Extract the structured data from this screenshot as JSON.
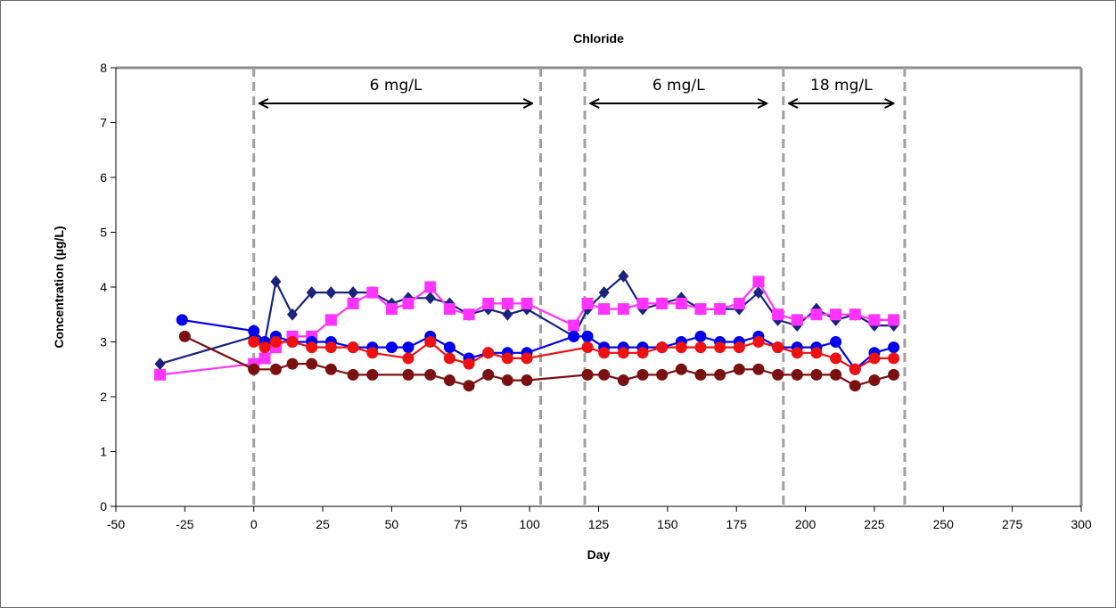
{
  "chart_data": {
    "type": "line",
    "title": "Chloride",
    "xlabel": "Day",
    "ylabel": "Concentration (µg/L)",
    "xlim": [
      -50,
      300
    ],
    "ylim": [
      0,
      8
    ],
    "x_ticks": [
      "-50",
      "-25",
      "0",
      "25",
      "50",
      "75",
      "100",
      "125",
      "150",
      "175",
      "200",
      "225",
      "250",
      "275",
      "300"
    ],
    "y_ticks": [
      "0",
      "1",
      "2",
      "3",
      "4",
      "5",
      "6",
      "7",
      "8"
    ],
    "grid": false,
    "legend": "none",
    "phase_boundaries": [
      0,
      104,
      120,
      192,
      236
    ],
    "annotations": [
      {
        "label": "6 mg/L",
        "from": 2,
        "to": 101
      },
      {
        "label": "6 mg/L",
        "from": 122,
        "to": 186
      },
      {
        "label": "18 mg/L",
        "from": 194,
        "to": 232
      }
    ],
    "series": [
      {
        "marker": "diamond",
        "color": "#1a237e",
        "x": [
          -34,
          0,
          4,
          8,
          14,
          21,
          28,
          36,
          43,
          50,
          56,
          64,
          71,
          78,
          85,
          92,
          99,
          116,
          121,
          127,
          134,
          141,
          148,
          155,
          162,
          169,
          176,
          183,
          190,
          197,
          204,
          211,
          218,
          225,
          232
        ],
        "y": [
          2.6,
          3.1,
          3.0,
          4.1,
          3.5,
          3.9,
          3.9,
          3.9,
          3.9,
          3.7,
          3.8,
          3.8,
          3.7,
          3.5,
          3.6,
          3.5,
          3.6,
          3.1,
          3.6,
          3.9,
          4.2,
          3.6,
          3.7,
          3.8,
          3.6,
          3.6,
          3.6,
          3.9,
          3.4,
          3.3,
          3.6,
          3.4,
          3.5,
          3.3,
          3.3
        ]
      },
      {
        "marker": "square",
        "color": "#ff33ff",
        "x": [
          -34,
          0,
          4,
          8,
          14,
          21,
          28,
          36,
          43,
          50,
          56,
          64,
          71,
          78,
          85,
          92,
          99,
          116,
          121,
          127,
          134,
          141,
          148,
          155,
          162,
          169,
          176,
          183,
          190,
          197,
          204,
          211,
          218,
          225,
          232
        ],
        "y": [
          2.4,
          2.6,
          2.7,
          2.9,
          3.1,
          3.1,
          3.4,
          3.7,
          3.9,
          3.6,
          3.7,
          4.0,
          3.6,
          3.5,
          3.7,
          3.7,
          3.7,
          3.3,
          3.7,
          3.6,
          3.6,
          3.7,
          3.7,
          3.7,
          3.6,
          3.6,
          3.7,
          4.1,
          3.5,
          3.4,
          3.5,
          3.5,
          3.5,
          3.4,
          3.4
        ]
      },
      {
        "marker": "circle",
        "color": "#0000ee",
        "x": [
          -26,
          0,
          4,
          8,
          14,
          21,
          28,
          36,
          43,
          50,
          56,
          64,
          71,
          78,
          85,
          92,
          99,
          116,
          121,
          127,
          134,
          141,
          148,
          155,
          162,
          169,
          176,
          183,
          190,
          197,
          204,
          211,
          218,
          225,
          232
        ],
        "y": [
          3.4,
          3.2,
          3.0,
          3.1,
          3.0,
          3.0,
          3.0,
          2.9,
          2.9,
          2.9,
          2.9,
          3.1,
          2.9,
          2.7,
          2.8,
          2.8,
          2.8,
          3.1,
          3.1,
          2.9,
          2.9,
          2.9,
          2.9,
          3.0,
          3.1,
          3.0,
          3.0,
          3.1,
          2.9,
          2.9,
          2.9,
          3.0,
          2.5,
          2.8,
          2.9
        ]
      },
      {
        "marker": "circle",
        "color": "#ee1111",
        "x": [
          0,
          4,
          8,
          14,
          21,
          28,
          36,
          43,
          56,
          64,
          71,
          78,
          85,
          92,
          99,
          121,
          127,
          134,
          141,
          148,
          155,
          162,
          169,
          176,
          183,
          190,
          197,
          204,
          211,
          218,
          225,
          232
        ],
        "y": [
          3.0,
          2.9,
          3.0,
          3.0,
          2.9,
          2.9,
          2.9,
          2.8,
          2.7,
          3.0,
          2.7,
          2.6,
          2.8,
          2.7,
          2.7,
          2.9,
          2.8,
          2.8,
          2.8,
          2.9,
          2.9,
          2.9,
          2.9,
          2.9,
          3.0,
          2.9,
          2.8,
          2.8,
          2.7,
          2.5,
          2.7,
          2.7
        ]
      },
      {
        "marker": "circle",
        "color": "#7b1010",
        "x": [
          -25,
          0,
          8,
          14,
          21,
          28,
          36,
          43,
          56,
          64,
          71,
          78,
          85,
          92,
          99,
          121,
          127,
          134,
          141,
          148,
          155,
          162,
          169,
          176,
          183,
          190,
          197,
          204,
          211,
          218,
          225,
          232
        ],
        "y": [
          3.1,
          2.5,
          2.5,
          2.6,
          2.6,
          2.5,
          2.4,
          2.4,
          2.4,
          2.4,
          2.3,
          2.2,
          2.4,
          2.3,
          2.3,
          2.4,
          2.4,
          2.3,
          2.4,
          2.4,
          2.5,
          2.4,
          2.4,
          2.5,
          2.5,
          2.4,
          2.4,
          2.4,
          2.4,
          2.2,
          2.3,
          2.4
        ]
      }
    ]
  }
}
